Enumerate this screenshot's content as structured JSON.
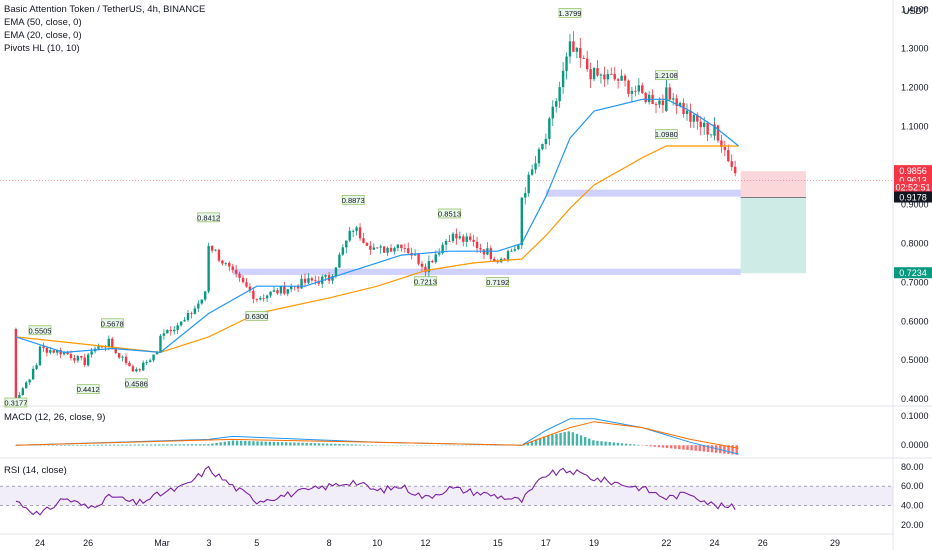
{
  "chart_data": {
    "type": "candlestick",
    "symbol_title": "Basic Attention Token / TetherUS, 4h, BINANCE",
    "currency": "USDT",
    "indicators": {
      "ema50": "EMA (50, close, 0)",
      "ema20": "EMA (20, close, 0)",
      "pivots": "Pivots HL (10, 10)",
      "macd": "MACD (12, 26, close, 9)",
      "rsi": "RSI (14, close)"
    },
    "price_axis": {
      "ticks": [
        "1.4000",
        "1.3000",
        "1.2000",
        "1.1000",
        "0.9000",
        "0.8000",
        "0.7000",
        "0.6000",
        "0.5000",
        "0.4000"
      ],
      "ylim": [
        0.385,
        1.425
      ]
    },
    "price_badges": [
      {
        "label": "0.9856",
        "value": 0.9856,
        "color": "#f23645"
      },
      {
        "label": "0.9613",
        "value": 0.9613,
        "color": "#f23645"
      },
      {
        "label": "02:52:51",
        "value": 0.9435,
        "color": "#f23645"
      },
      {
        "label": "0.9178",
        "value": 0.9178,
        "color": "#131722"
      },
      {
        "label": "0.7234",
        "value": 0.7234,
        "color": "#089981"
      }
    ],
    "x_axis": {
      "labels": [
        "24",
        "26",
        "Mar",
        "3",
        "5",
        "8",
        "10",
        "12",
        "15",
        "17",
        "19",
        "22",
        "24",
        "26",
        "29"
      ]
    },
    "support_zones": [
      {
        "low": 0.719,
        "high": 0.735,
        "from": "Mar 4",
        "to": "Mar 25"
      },
      {
        "low": 0.92,
        "high": 0.938,
        "from": "Mar 17",
        "to": "Mar 25"
      }
    ],
    "position": {
      "entry": 0.9178,
      "stop": 0.9856,
      "target": 0.7234
    },
    "pivots": [
      {
        "label": "0.3177",
        "type": "low",
        "date": "Feb 23"
      },
      {
        "label": "0.5505",
        "type": "high",
        "date": "Feb 24"
      },
      {
        "label": "0.4412",
        "type": "low",
        "date": "Feb 26"
      },
      {
        "label": "0.5678",
        "type": "high",
        "date": "Feb 27"
      },
      {
        "label": "0.4586",
        "type": "low",
        "date": "Feb 28"
      },
      {
        "label": "0.8412",
        "type": "high",
        "date": "Mar 3"
      },
      {
        "label": "0.6300",
        "type": "low",
        "date": "Mar 5"
      },
      {
        "label": "0.8873",
        "type": "high",
        "date": "Mar 9"
      },
      {
        "label": "0.7213",
        "type": "low",
        "date": "Mar 12"
      },
      {
        "label": "0.8513",
        "type": "high",
        "date": "Mar 13"
      },
      {
        "label": "0.7192",
        "type": "low",
        "date": "Mar 15"
      },
      {
        "label": "1.3799",
        "type": "high",
        "date": "Mar 18"
      },
      {
        "label": "1.2108",
        "type": "high",
        "date": "Mar 22"
      },
      {
        "label": "1.0980",
        "type": "low",
        "date": "Mar 22"
      }
    ],
    "close_path": [
      [
        "Feb 23",
        0.58
      ],
      [
        "Feb 23",
        0.4
      ],
      [
        "Feb 24",
        0.5
      ],
      [
        "Feb 24",
        0.53
      ],
      [
        "Feb 25",
        0.52
      ],
      [
        "Feb 26",
        0.49
      ],
      [
        "Feb 26",
        0.52
      ],
      [
        "Feb 27",
        0.55
      ],
      [
        "Feb 27",
        0.53
      ],
      [
        "Feb 28",
        0.47
      ],
      [
        "Mar 1",
        0.53
      ],
      [
        "Mar 1",
        0.57
      ],
      [
        "Mar 2",
        0.6
      ],
      [
        "Mar 3",
        0.68
      ],
      [
        "Mar 3",
        0.8
      ],
      [
        "Mar 4",
        0.72
      ],
      [
        "Mar 5",
        0.66
      ],
      [
        "Mar 6",
        0.68
      ],
      [
        "Mar 7",
        0.7
      ],
      [
        "Mar 8",
        0.71
      ],
      [
        "Mar 9",
        0.84
      ],
      [
        "Mar 10",
        0.78
      ],
      [
        "Mar 11",
        0.8
      ],
      [
        "Mar 12",
        0.74
      ],
      [
        "Mar 13",
        0.82
      ],
      [
        "Mar 14",
        0.8
      ],
      [
        "Mar 15",
        0.76
      ],
      [
        "Mar 16",
        0.8
      ],
      [
        "Mar 16",
        0.92
      ],
      [
        "Mar 17",
        1.07
      ],
      [
        "Mar 18",
        1.3
      ],
      [
        "Mar 19",
        1.23
      ],
      [
        "Mar 20",
        1.22
      ],
      [
        "Mar 21",
        1.18
      ],
      [
        "Mar 22",
        1.16
      ],
      [
        "Mar 22",
        1.2
      ],
      [
        "Mar 23",
        1.12
      ],
      [
        "Mar 24",
        1.08
      ],
      [
        "Mar 24",
        1.1
      ],
      [
        "Mar 25",
        0.96
      ]
    ],
    "ema20_path": [
      [
        "Feb 23",
        0.56
      ],
      [
        "Feb 25",
        0.52
      ],
      [
        "Feb 27",
        0.53
      ],
      [
        "Mar 1",
        0.52
      ],
      [
        "Mar 3",
        0.62
      ],
      [
        "Mar 5",
        0.69
      ],
      [
        "Mar 7",
        0.69
      ],
      [
        "Mar 9",
        0.73
      ],
      [
        "Mar 11",
        0.77
      ],
      [
        "Mar 13",
        0.78
      ],
      [
        "Mar 15",
        0.78
      ],
      [
        "Mar 16",
        0.8
      ],
      [
        "Mar 17",
        0.92
      ],
      [
        "Mar 18",
        1.07
      ],
      [
        "Mar 19",
        1.14
      ],
      [
        "Mar 21",
        1.17
      ],
      [
        "Mar 22",
        1.17
      ],
      [
        "Mar 23",
        1.14
      ],
      [
        "Mar 24",
        1.1
      ],
      [
        "Mar 25",
        1.05
      ]
    ],
    "ema50_path": [
      [
        "Feb 23",
        0.56
      ],
      [
        "Feb 26",
        0.54
      ],
      [
        "Mar 1",
        0.52
      ],
      [
        "Mar 3",
        0.56
      ],
      [
        "Mar 5",
        0.62
      ],
      [
        "Mar 8",
        0.66
      ],
      [
        "Mar 10",
        0.69
      ],
      [
        "Mar 12",
        0.73
      ],
      [
        "Mar 14",
        0.75
      ],
      [
        "Mar 16",
        0.76
      ],
      [
        "Mar 17",
        0.82
      ],
      [
        "Mar 18",
        0.89
      ],
      [
        "Mar 19",
        0.95
      ],
      [
        "Mar 21",
        1.02
      ],
      [
        "Mar 22",
        1.05
      ],
      [
        "Mar 24",
        1.05
      ],
      [
        "Mar 25",
        1.05
      ]
    ],
    "macd": {
      "ticks": [
        "0.1000",
        "0.0000"
      ],
      "ylim": [
        -0.04,
        0.13
      ],
      "macd_line": [
        [
          "Feb 23",
          0.0
        ],
        [
          "Mar 3",
          0.02
        ],
        [
          "Mar 4",
          0.03
        ],
        [
          "Mar 10",
          0.01
        ],
        [
          "Mar 16",
          0.0
        ],
        [
          "Mar 17",
          0.05
        ],
        [
          "Mar 18",
          0.09
        ],
        [
          "Mar 19",
          0.09
        ],
        [
          "Mar 21",
          0.06
        ],
        [
          "Mar 23",
          0.01
        ],
        [
          "Mar 25",
          -0.03
        ]
      ],
      "signal_line": [
        [
          "Feb 23",
          0.0
        ],
        [
          "Mar 4",
          0.02
        ],
        [
          "Mar 10",
          0.01
        ],
        [
          "Mar 16",
          0.0
        ],
        [
          "Mar 18",
          0.06
        ],
        [
          "Mar 19",
          0.08
        ],
        [
          "Mar 21",
          0.06
        ],
        [
          "Mar 23",
          0.02
        ],
        [
          "Mar 25",
          -0.01
        ]
      ]
    },
    "rsi": {
      "ticks": [
        "80.00",
        "60.00",
        "40.00",
        "20.00"
      ],
      "ylim": [
        15,
        88
      ],
      "band": [
        40,
        60
      ],
      "values": [
        [
          "Feb 23",
          45
        ],
        [
          "Feb 24",
          30
        ],
        [
          "Feb 25",
          48
        ],
        [
          "Feb 26",
          38
        ],
        [
          "Feb 27",
          50
        ],
        [
          "Feb 28",
          42
        ],
        [
          "Mar 1",
          52
        ],
        [
          "Mar 2",
          60
        ],
        [
          "Mar 3",
          78
        ],
        [
          "Mar 4",
          60
        ],
        [
          "Mar 5",
          45
        ],
        [
          "Mar 7",
          55
        ],
        [
          "Mar 9",
          65
        ],
        [
          "Mar 10",
          55
        ],
        [
          "Mar 11",
          60
        ],
        [
          "Mar 12",
          48
        ],
        [
          "Mar 13",
          58
        ],
        [
          "Mar 15",
          50
        ],
        [
          "Mar 16",
          45
        ],
        [
          "Mar 17",
          72
        ],
        [
          "Mar 18",
          76
        ],
        [
          "Mar 19",
          68
        ],
        [
          "Mar 21",
          58
        ],
        [
          "Mar 22",
          48
        ],
        [
          "Mar 23",
          53
        ],
        [
          "Mar 24",
          40
        ],
        [
          "Mar 25",
          38
        ]
      ]
    }
  }
}
